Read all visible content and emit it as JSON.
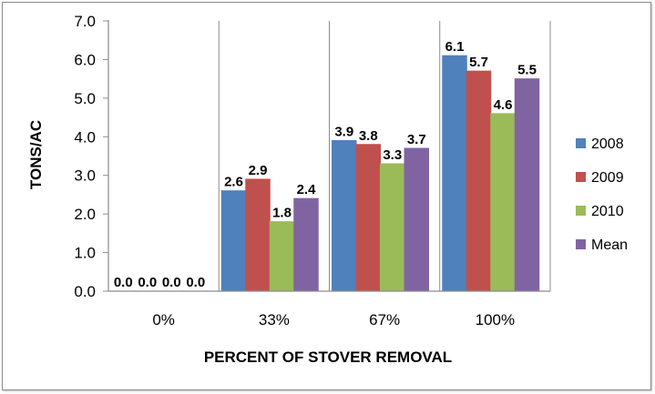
{
  "chart_data": {
    "type": "bar",
    "title": "",
    "xlabel": "PERCENT OF STOVER REMOVAL",
    "ylabel": "TONS/AC",
    "categories": [
      "0%",
      "33%",
      "67%",
      "100%"
    ],
    "series": [
      {
        "name": "2008",
        "color": "#4f81bd",
        "values": [
          0.0,
          2.6,
          3.9,
          6.1
        ]
      },
      {
        "name": "2009",
        "color": "#c0504d",
        "values": [
          0.0,
          2.9,
          3.8,
          5.7
        ]
      },
      {
        "name": "2010",
        "color": "#9bbb59",
        "values": [
          0.0,
          1.8,
          3.3,
          4.6
        ]
      },
      {
        "name": "Mean",
        "color": "#8064a2",
        "values": [
          0.0,
          2.4,
          3.7,
          5.5
        ]
      }
    ],
    "ylim": [
      0,
      7
    ],
    "yticks": [
      "0.0",
      "1.0",
      "2.0",
      "3.0",
      "4.0",
      "5.0",
      "6.0",
      "7.0"
    ],
    "grid": false,
    "legend": "right"
  }
}
